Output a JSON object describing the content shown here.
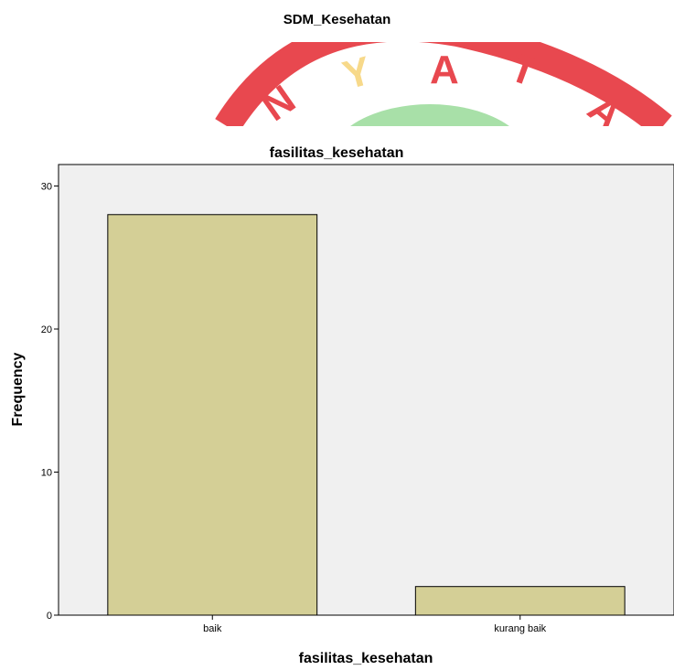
{
  "page_title": "SDM_Kesehatan",
  "chart_data": {
    "type": "bar",
    "title": "fasilitas_kesehatan",
    "xlabel": "fasilitas_kesehatan",
    "ylabel": "Frequency",
    "categories": [
      "baik",
      "kurang baik"
    ],
    "values": [
      28,
      2
    ],
    "ylim": [
      0,
      31.5
    ],
    "yticks": [
      0,
      10,
      20,
      30
    ],
    "bar_color": "#d4cf96",
    "plot_background": "#f0f0f0",
    "grid": false
  }
}
